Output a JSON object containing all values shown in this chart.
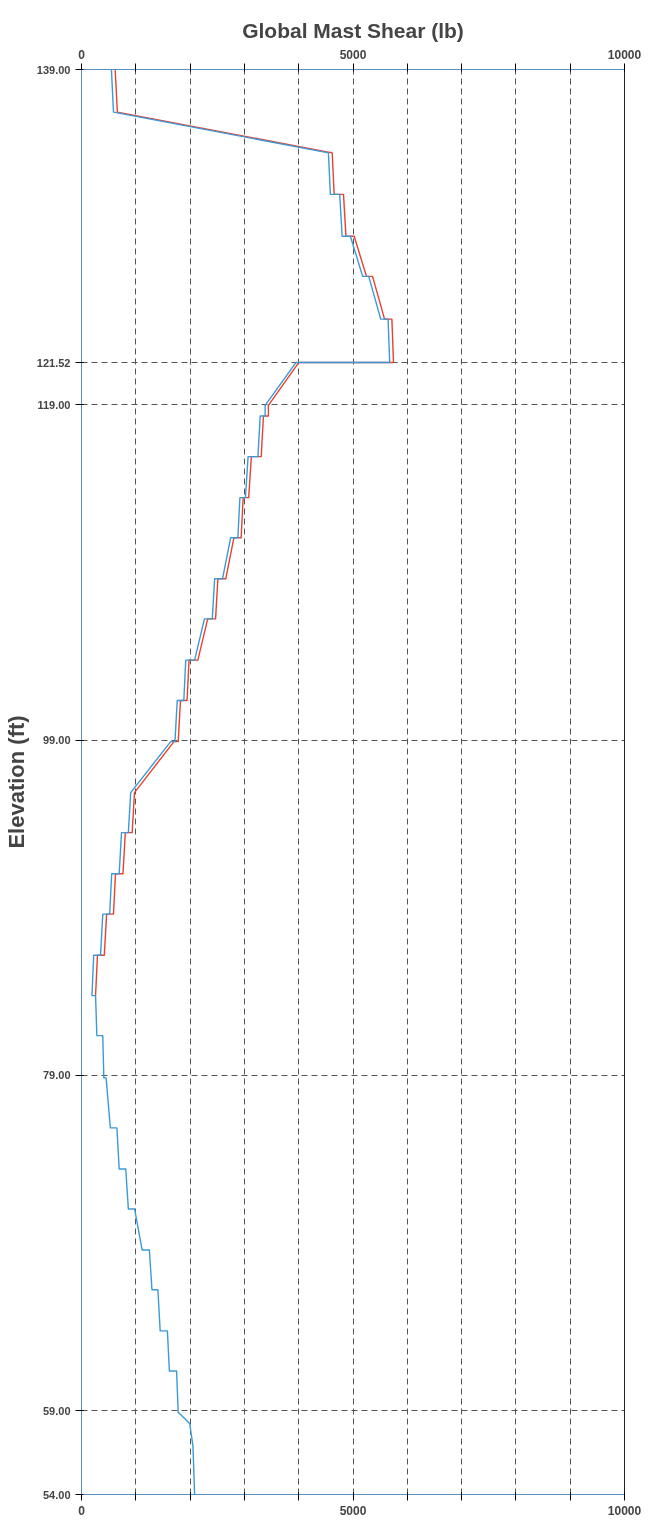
{
  "chart_data": {
    "type": "line",
    "title": "Global Mast Shear (lb)",
    "ylabel": "Elevation (ft)",
    "xlim": [
      0,
      10000
    ],
    "ylim": [
      54,
      139
    ],
    "xticks": [
      0,
      {
        "value": 1000,
        "label": null
      },
      {
        "value": 2000,
        "label": null
      },
      {
        "value": 3000,
        "label": null
      },
      {
        "value": 4000,
        "label": null
      },
      5000,
      {
        "value": 6000,
        "label": null
      },
      {
        "value": 7000,
        "label": null
      },
      {
        "value": 8000,
        "label": null
      },
      {
        "value": 9000,
        "label": null
      },
      10000
    ],
    "x2lim": [
      0,
      10000
    ],
    "x2ticks": [
      0,
      {
        "value": 1000,
        "label": null
      },
      {
        "value": 2000,
        "label": null
      },
      {
        "value": 3000,
        "label": null
      },
      {
        "value": 4000,
        "label": null
      },
      5000,
      {
        "value": 6000,
        "label": null
      },
      {
        "value": 7000,
        "label": null
      },
      {
        "value": 8000,
        "label": null
      },
      {
        "value": 9000,
        "label": null
      },
      10000
    ],
    "yticks": [
      {
        "value": 54,
        "label": "54.00"
      },
      {
        "value": 59,
        "label": "59.00"
      },
      {
        "value": 79,
        "label": "79.00"
      },
      {
        "value": 99,
        "label": "99.00"
      },
      {
        "value": 119,
        "label": "119.00"
      },
      {
        "value": 121.52,
        "label": "121.52"
      },
      {
        "value": 139,
        "label": "139.00"
      }
    ],
    "grid": true,
    "line_style": "solid",
    "marker": "none",
    "series": [
      {
        "color": "#e8412c",
        "x": [
          620,
          660,
          4617,
          4653,
          4825,
          4870,
          5022,
          5248,
          5360,
          5581,
          5716,
          5746,
          4000,
          3442,
          3442,
          3351,
          3309,
          3128,
          3079,
          2977,
          2940,
          2807,
          2657,
          2512,
          2469,
          2324,
          2143,
          1980,
          1944,
          1823,
          1781,
          1703,
          976,
          933,
          807,
          764,
          626,
          589,
          462,
          420,
          294,
          259
        ],
        "values": [
          139,
          136.46,
          134.03,
          131.55,
          131.55,
          129.05,
          129.05,
          126.66,
          126.66,
          124.11,
          124.11,
          121.52,
          121.52,
          118.97,
          118.33,
          118.33,
          115.91,
          115.91,
          113.46,
          113.46,
          111.07,
          111.07,
          108.62,
          108.62,
          106.23,
          106.23,
          103.77,
          103.77,
          101.36,
          101.36,
          98.91,
          98.91,
          95.87,
          93.48,
          93.48,
          91.03,
          91.03,
          88.62,
          88.62,
          86.17,
          86.17,
          83.76
        ]
      },
      {
        "color": "#3a9ad9",
        "x": [
          551,
          589,
          4547,
          4583,
          4755,
          4800,
          4952,
          5178,
          5290,
          5511,
          5646,
          5676,
          3949,
          3382,
          3382,
          3291,
          3249,
          3068,
          3019,
          2917,
          2880,
          2747,
          2597,
          2452,
          2409,
          2264,
          2083,
          1920,
          1884,
          1763,
          1721,
          1643,
          906,
          863,
          737,
          694,
          556,
          519,
          392,
          350,
          224,
          193,
          259,
          283,
          392,
          411,
          453,
          531,
          652,
          694,
          815,
          863,
          978,
          1117,
          1250,
          1298,
          1407,
          1449,
          1582,
          1618,
          1751,
          1781,
          1993,
          2053,
          2083
        ],
        "values": [
          139,
          136.46,
          134.03,
          131.55,
          131.55,
          129.05,
          129.05,
          126.66,
          126.66,
          124.11,
          124.11,
          121.52,
          121.52,
          118.97,
          118.33,
          118.33,
          115.91,
          115.91,
          113.46,
          113.46,
          111.07,
          111.07,
          108.62,
          108.62,
          106.23,
          106.23,
          103.77,
          103.77,
          101.36,
          101.36,
          98.91,
          98.91,
          95.87,
          93.48,
          93.48,
          91.03,
          91.03,
          88.62,
          88.62,
          86.17,
          86.17,
          83.76,
          83.76,
          81.37,
          81.37,
          78.85,
          78.85,
          75.87,
          75.87,
          73.42,
          73.42,
          71.03,
          71.03,
          68.58,
          68.58,
          66.21,
          66.21,
          63.76,
          63.76,
          61.37,
          61.37,
          58.91,
          58.23,
          56.87,
          54
        ]
      }
    ]
  }
}
